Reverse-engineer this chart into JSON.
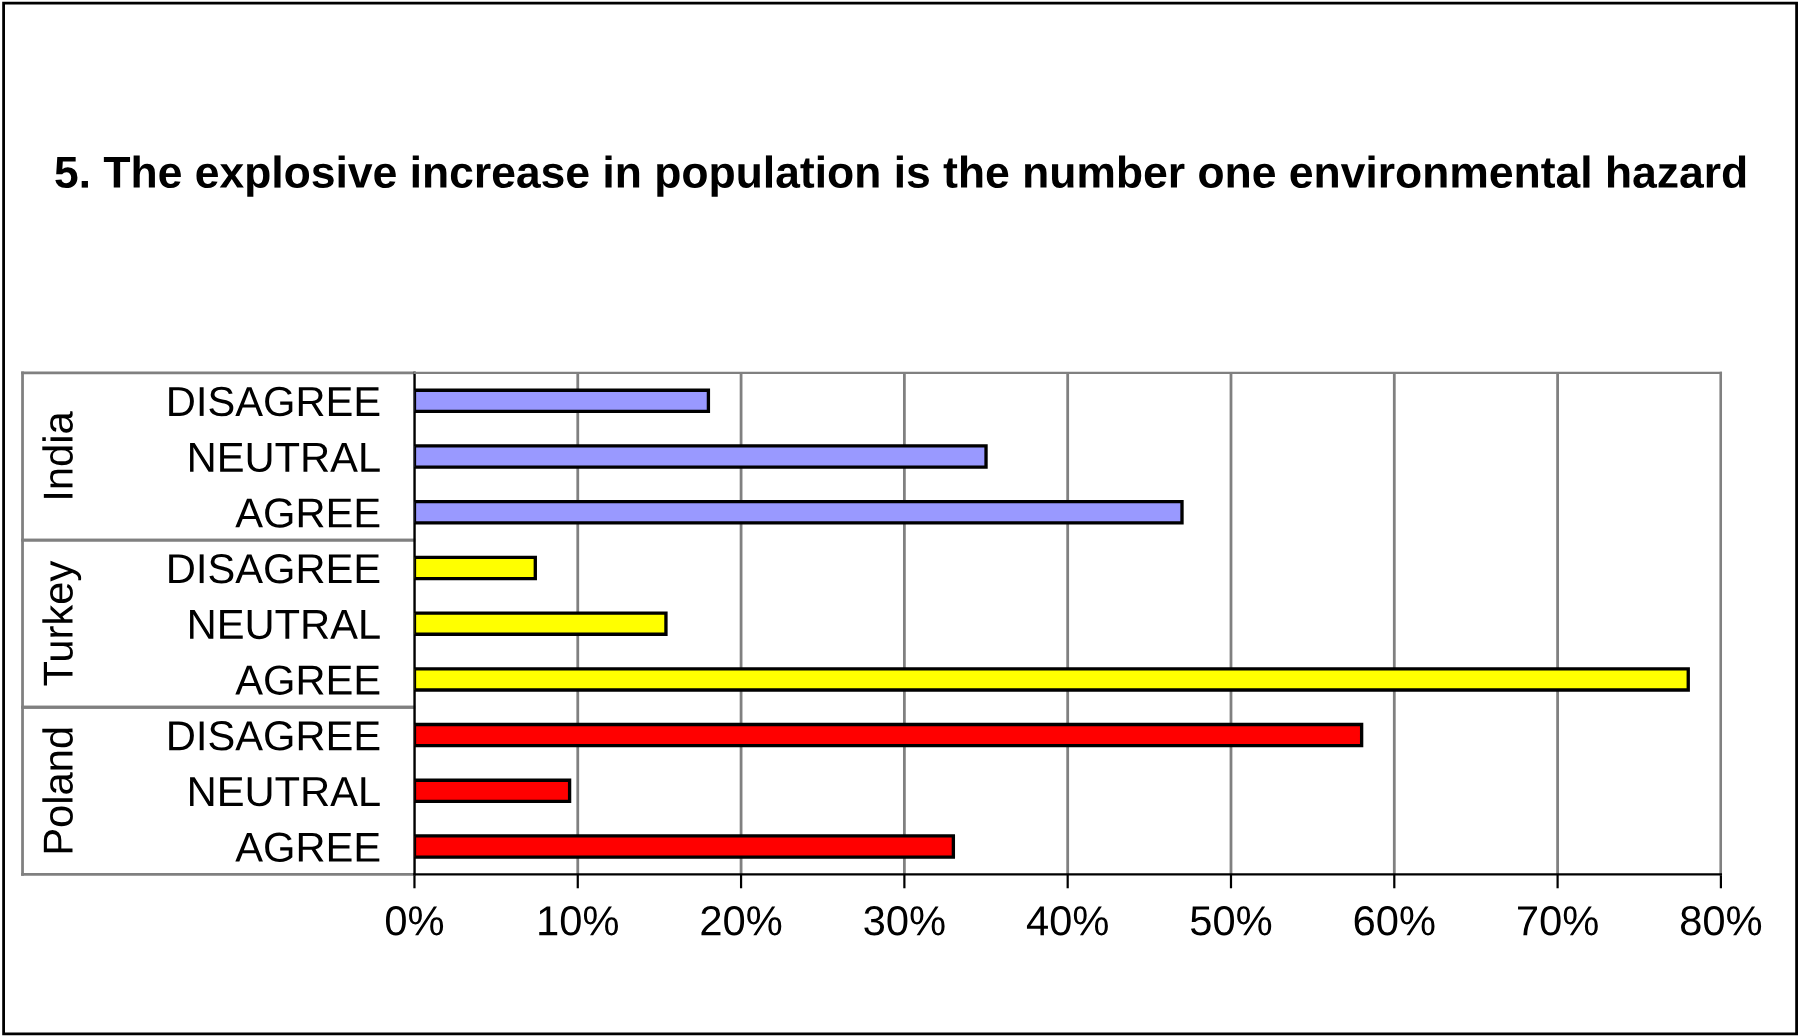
{
  "chart_data": {
    "type": "bar",
    "orientation": "horizontal",
    "title": "5. The explosive increase in population is the number one environmental hazard",
    "categories": [
      "DISAGREE",
      "NEUTRAL",
      "AGREE",
      "DISAGREE",
      "NEUTRAL",
      "AGREE",
      "DISAGREE",
      "NEUTRAL",
      "AGREE"
    ],
    "series": [
      {
        "name": "India",
        "color": "#9999ff",
        "values": [
          18,
          35,
          47,
          null,
          null,
          null,
          null,
          null,
          null
        ]
      },
      {
        "name": "Turkey",
        "color": "#ffff00",
        "values": [
          null,
          null,
          null,
          7.4,
          15.4,
          78,
          null,
          null,
          null
        ]
      },
      {
        "name": "Poland",
        "color": "#ff0000",
        "values": [
          null,
          null,
          null,
          null,
          null,
          null,
          58,
          9.5,
          33
        ]
      }
    ],
    "xlim": [
      0,
      80
    ],
    "xticks": [
      {
        "value": 0,
        "label": "0%"
      },
      {
        "value": 10,
        "label": "10%"
      },
      {
        "value": 20,
        "label": "20%"
      },
      {
        "value": 30,
        "label": "30%"
      },
      {
        "value": 40,
        "label": "40%"
      },
      {
        "value": 50,
        "label": "50%"
      },
      {
        "value": 60,
        "label": "60%"
      },
      {
        "value": 70,
        "label": "70%"
      },
      {
        "value": 80,
        "label": "80%"
      }
    ],
    "grid": "x",
    "legend": false
  }
}
